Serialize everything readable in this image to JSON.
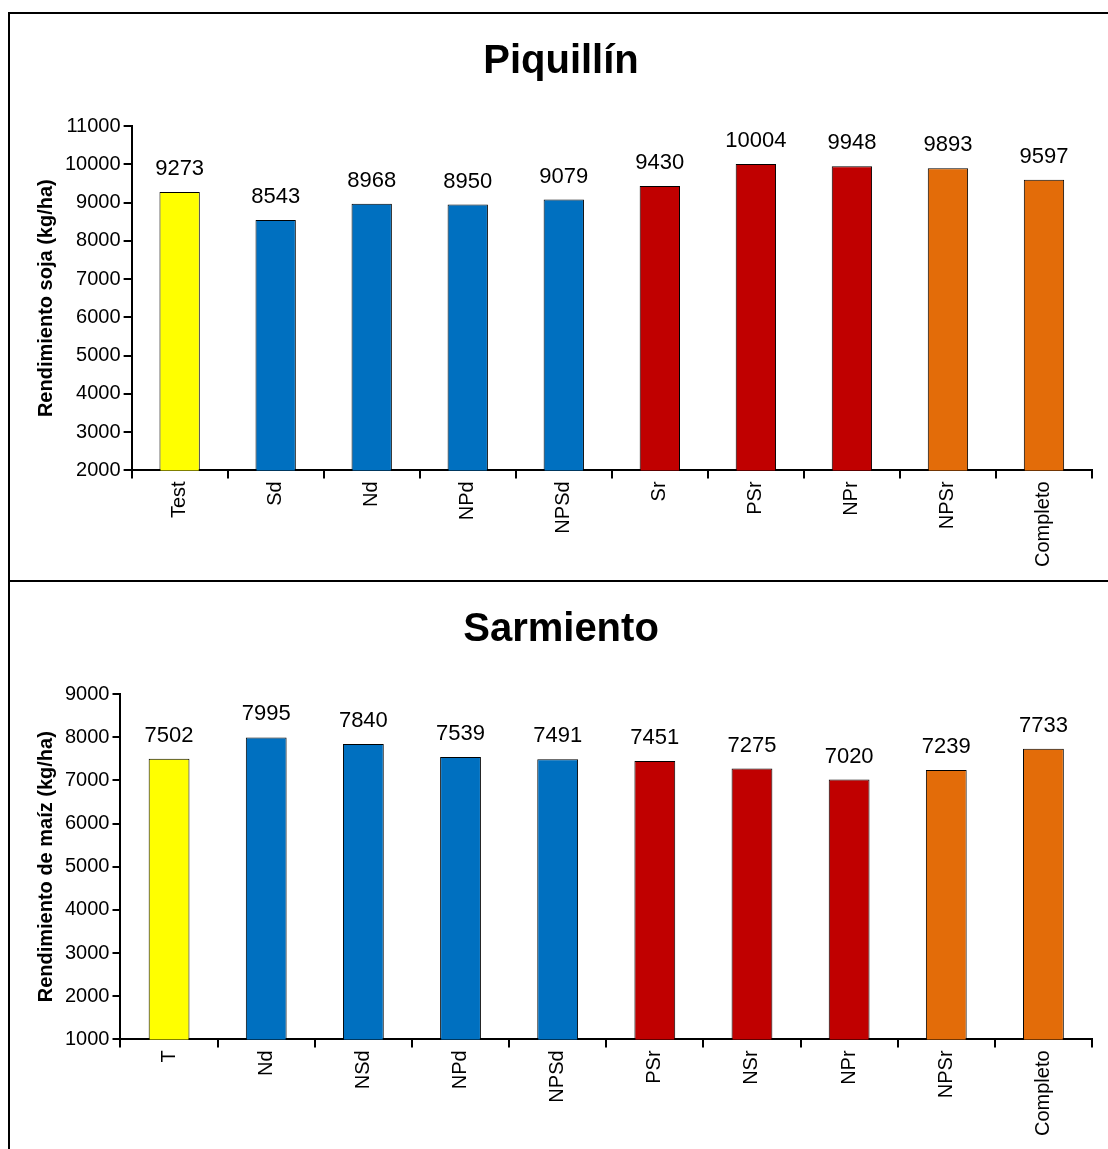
{
  "chart_data": [
    {
      "type": "bar",
      "title": "Piquillín",
      "ylabel": "Rendimiento soja (kg/ha)",
      "categories": [
        "Test",
        "Sd",
        "Nd",
        "NPd",
        "NPSd",
        "Sr",
        "PSr",
        "NPr",
        "NPSr",
        "Completo"
      ],
      "values": [
        9273,
        8543,
        8968,
        8950,
        9079,
        9430,
        10004,
        9948,
        9893,
        9597
      ],
      "colors": [
        "#ffff00",
        "#0070c0",
        "#0070c0",
        "#0070c0",
        "#0070c0",
        "#c00000",
        "#c00000",
        "#c00000",
        "#e36c09",
        "#e36c09"
      ],
      "ylim": [
        2000,
        11000
      ],
      "yticks": [
        2000,
        3000,
        4000,
        5000,
        6000,
        7000,
        8000,
        9000,
        10000,
        11000
      ],
      "data_labels": true,
      "grid": false,
      "legend": false
    },
    {
      "type": "bar",
      "title": "Sarmiento",
      "ylabel": "Rendimiento de maíz (kg/ha)",
      "categories": [
        "T",
        "Nd",
        "NSd",
        "NPd",
        "NPSd",
        "PSr",
        "NSr",
        "NPr",
        "NPSr",
        "Completo"
      ],
      "values": [
        7502,
        7995,
        7840,
        7539,
        7491,
        7451,
        7275,
        7020,
        7239,
        7733
      ],
      "colors": [
        "#ffff00",
        "#0070c0",
        "#0070c0",
        "#0070c0",
        "#0070c0",
        "#c00000",
        "#c00000",
        "#c00000",
        "#e36c09",
        "#e36c09"
      ],
      "ylim": [
        1000,
        9000
      ],
      "yticks": [
        1000,
        2000,
        3000,
        4000,
        5000,
        6000,
        7000,
        8000,
        9000
      ],
      "data_labels": true,
      "grid": false,
      "legend": false
    }
  ]
}
